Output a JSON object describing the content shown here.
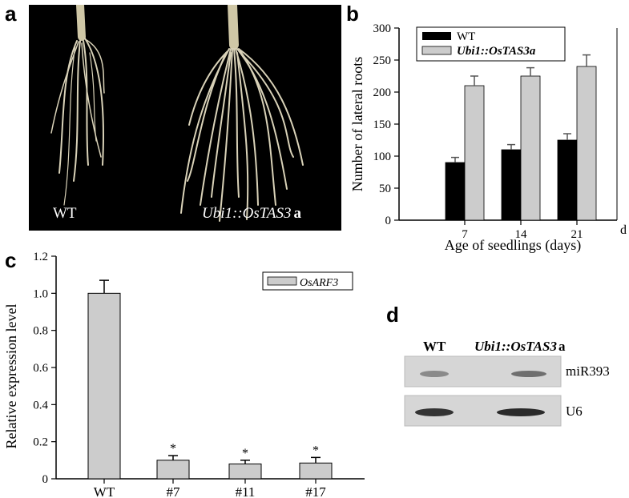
{
  "panel_a": {
    "letter": "a",
    "label_left": "WT",
    "label_right": "Ubi1::OsTAS3",
    "label_right_suffix": "a"
  },
  "panel_b": {
    "letter": "b"
  },
  "panel_c": {
    "letter": "c"
  },
  "panel_d": {
    "letter": "d",
    "lane_wt": "WT",
    "lane_tas": "Ubi1::OsTAS3",
    "lane_tas_suffix": "a",
    "band_top": "miR393",
    "band_bottom": "U6"
  },
  "colors": {
    "wt_bar": "#000000",
    "tas_bar": "#cccccc",
    "arf_bar": "#cccccc"
  },
  "chart_data": [
    {
      "type": "bar",
      "panel": "b",
      "categories": [
        "7",
        "14",
        "21"
      ],
      "series": [
        {
          "name": "WT",
          "values": [
            90,
            110,
            125
          ],
          "errors": [
            8,
            8,
            10
          ]
        },
        {
          "name": "Ubi1::OsTAS3a",
          "values": [
            210,
            225,
            240
          ],
          "errors": [
            15,
            13,
            18
          ]
        }
      ],
      "xlabel": "Age of seedlings (days)",
      "x_unit": "d",
      "ylabel": "Number of lateral roots",
      "ylim": [
        0,
        300
      ],
      "yticks": [
        "0",
        "50",
        "100",
        "150",
        "200",
        "250",
        "300"
      ],
      "legend": "top-left"
    },
    {
      "type": "bar",
      "panel": "c",
      "categories": [
        "WT",
        "#7",
        "#11",
        "#17"
      ],
      "series": [
        {
          "name": "OsARF3",
          "values": [
            1.0,
            0.1,
            0.08,
            0.085
          ],
          "errors": [
            0.07,
            0.025,
            0.02,
            0.03
          ]
        }
      ],
      "significance": [
        "",
        "*",
        "*",
        "*"
      ],
      "ylabel": "Relative expression level",
      "ylim": [
        0,
        1.2
      ],
      "yticks": [
        "0",
        "0.2",
        "0.4",
        "0.6",
        "0.8",
        "1.0",
        "1.2"
      ],
      "legend": "top-right"
    }
  ]
}
